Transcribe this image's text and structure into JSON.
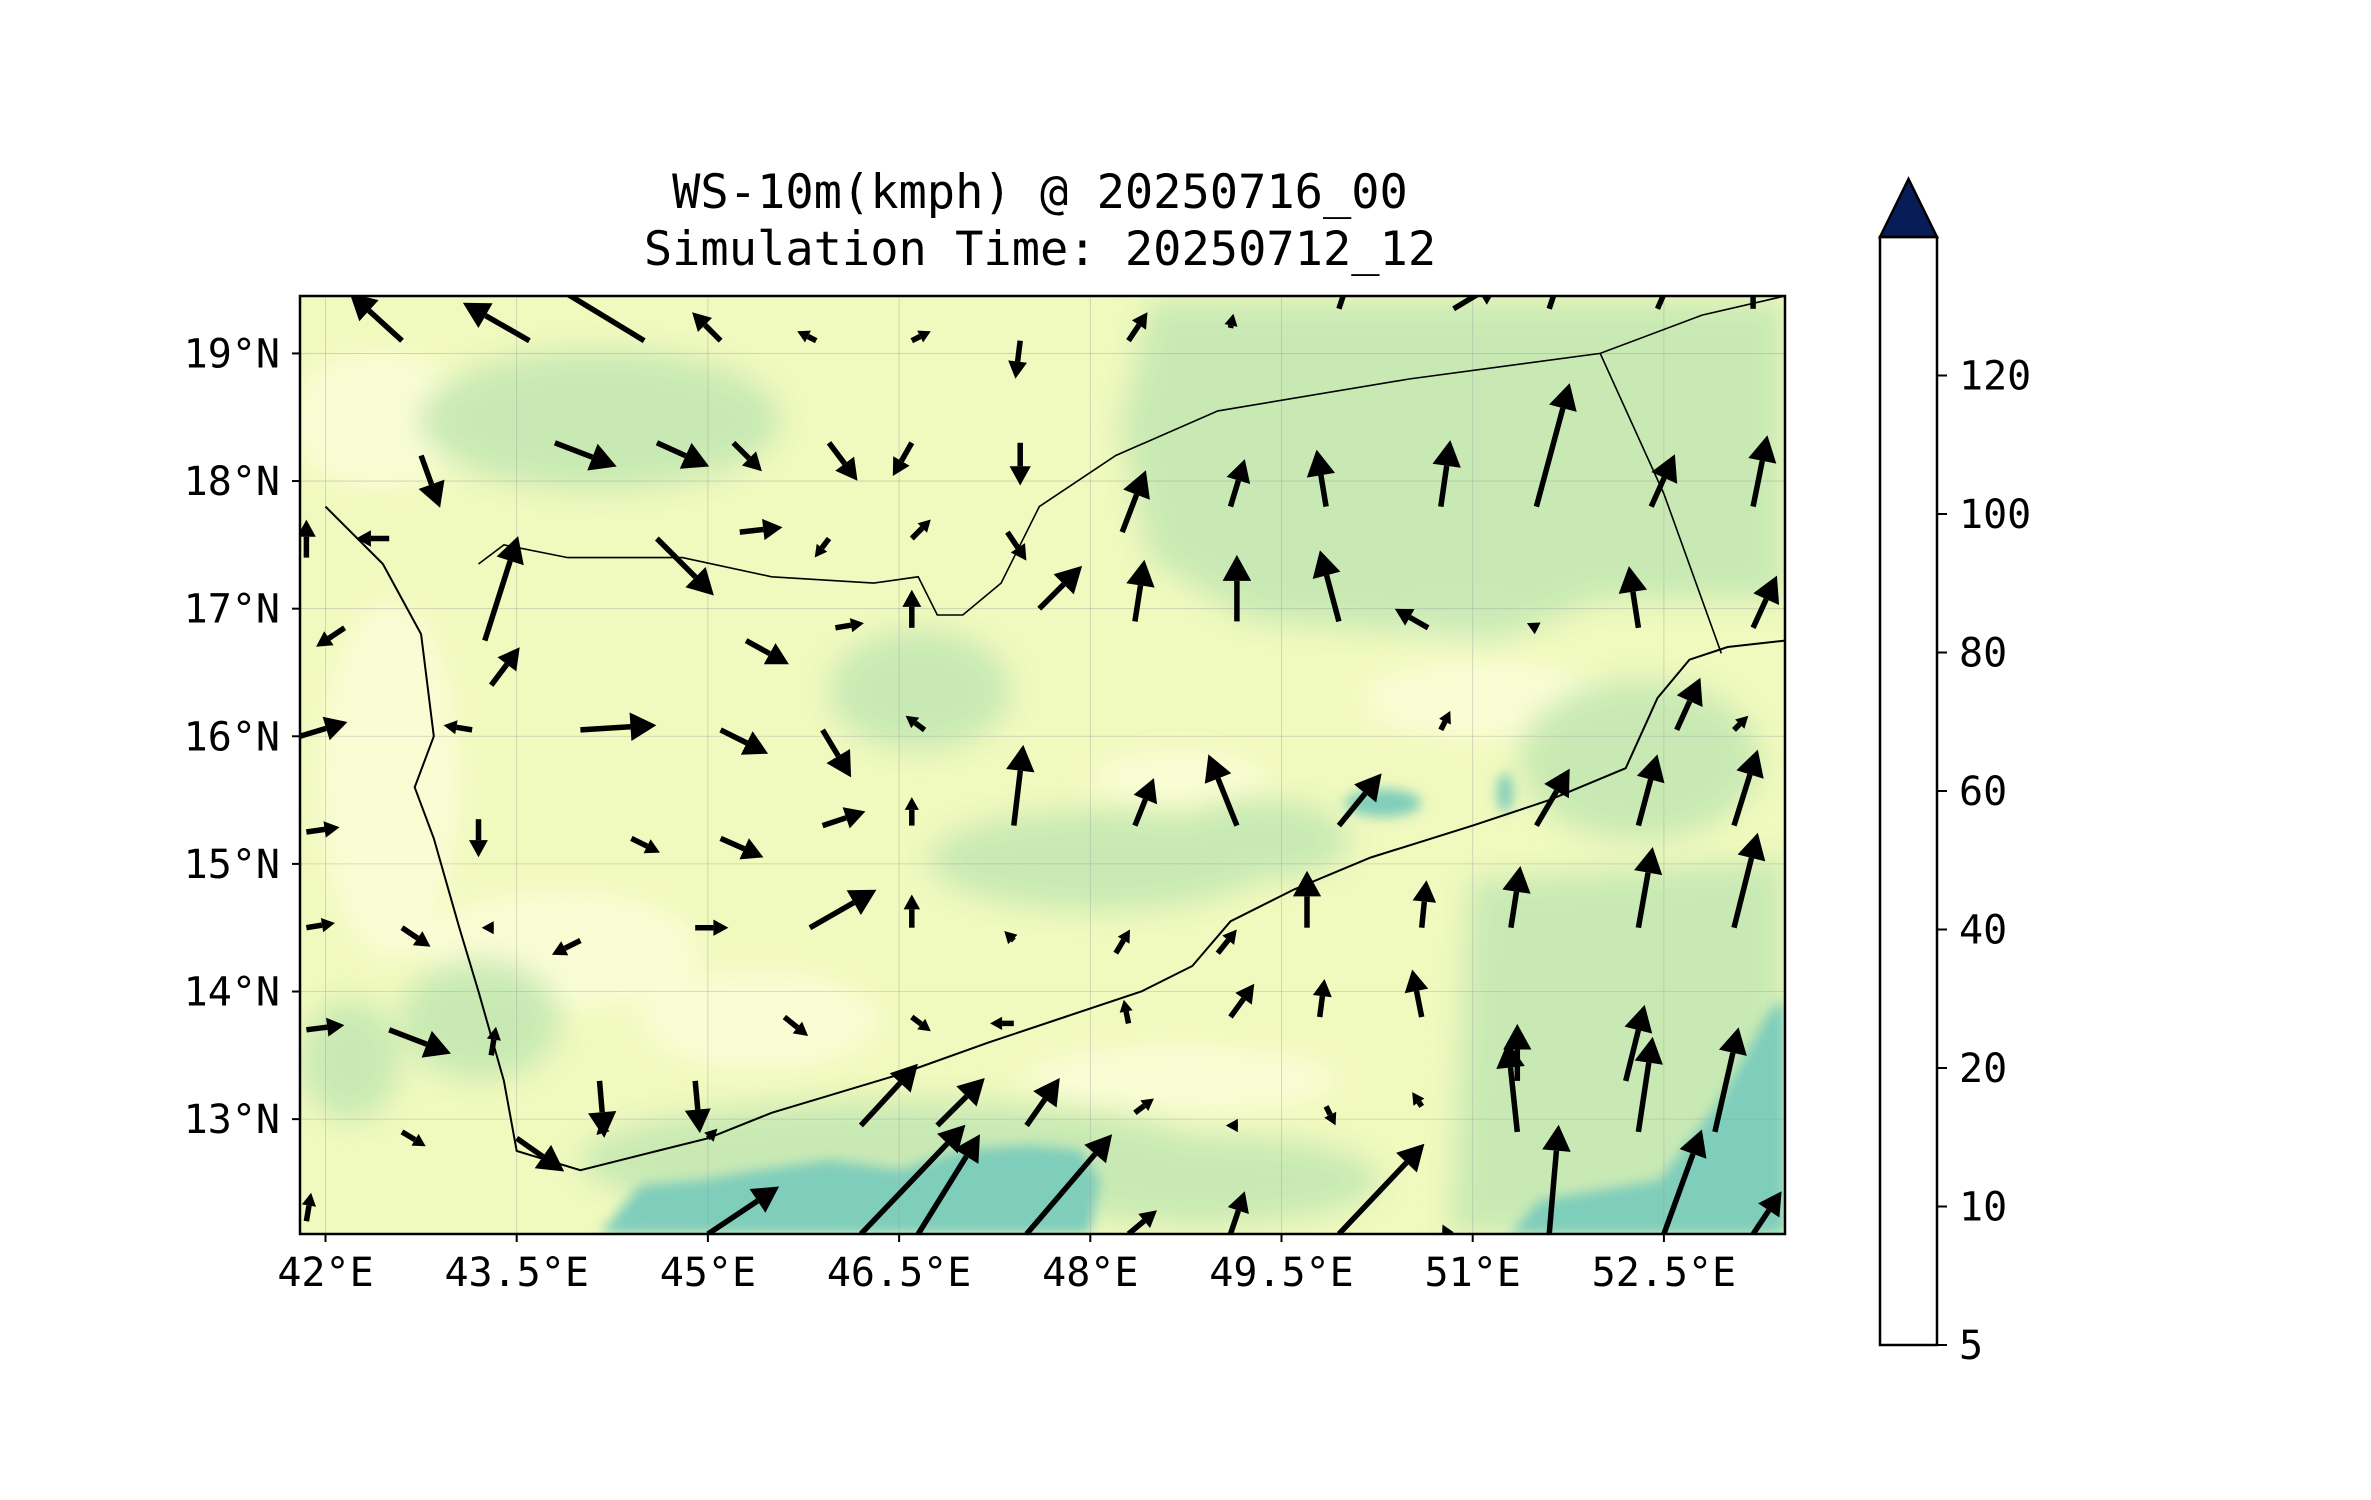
{
  "title": {
    "line1": "WS-10m(kmph) @ 20250716_00",
    "line2": "Simulation Time: 20250712_12"
  },
  "map": {
    "lon_range": [
      41.8,
      53.45
    ],
    "lat_range": [
      12.1,
      19.45
    ],
    "lon_ticks": [
      {
        "value": 42.0,
        "label": "42°E"
      },
      {
        "value": 43.5,
        "label": "43.5°E"
      },
      {
        "value": 45.0,
        "label": "45°E"
      },
      {
        "value": 46.5,
        "label": "46.5°E"
      },
      {
        "value": 48.0,
        "label": "48°E"
      },
      {
        "value": 49.5,
        "label": "49.5°E"
      },
      {
        "value": 51.0,
        "label": "51°E"
      },
      {
        "value": 52.5,
        "label": "52.5°E"
      }
    ],
    "lat_ticks": [
      {
        "value": 19,
        "label": "19°N"
      },
      {
        "value": 18,
        "label": "18°N"
      },
      {
        "value": 17,
        "label": "17°N"
      },
      {
        "value": 16,
        "label": "16°N"
      },
      {
        "value": 15,
        "label": "15°N"
      },
      {
        "value": 14,
        "label": "14°N"
      },
      {
        "value": 13,
        "label": "13°N"
      }
    ],
    "gridlines": true,
    "background_color": "#f0f9be",
    "coastline": [
      [
        42.0,
        17.8
      ],
      [
        42.45,
        17.35
      ],
      [
        42.75,
        16.8
      ],
      [
        42.85,
        16.0
      ],
      [
        42.7,
        15.6
      ],
      [
        42.85,
        15.2
      ],
      [
        43.05,
        14.5
      ],
      [
        43.2,
        14.0
      ],
      [
        43.4,
        13.3
      ],
      [
        43.5,
        12.75
      ],
      [
        44.0,
        12.6
      ],
      [
        44.6,
        12.75
      ],
      [
        45.0,
        12.85
      ],
      [
        45.5,
        13.05
      ],
      [
        46.5,
        13.35
      ],
      [
        47.2,
        13.6
      ],
      [
        47.8,
        13.8
      ],
      [
        48.4,
        14.0
      ],
      [
        48.8,
        14.2
      ],
      [
        49.1,
        14.55
      ],
      [
        49.6,
        14.8
      ],
      [
        50.2,
        15.05
      ],
      [
        51.0,
        15.3
      ],
      [
        51.6,
        15.5
      ],
      [
        52.2,
        15.75
      ],
      [
        52.45,
        16.3
      ],
      [
        52.7,
        16.6
      ],
      [
        53.0,
        16.7
      ],
      [
        53.45,
        16.75
      ]
    ],
    "borders": [
      [
        [
          43.2,
          17.35
        ],
        [
          43.4,
          17.5
        ],
        [
          43.9,
          17.4
        ],
        [
          44.8,
          17.4
        ],
        [
          45.5,
          17.25
        ],
        [
          46.3,
          17.2
        ],
        [
          46.65,
          17.25
        ],
        [
          46.8,
          16.95
        ],
        [
          47.0,
          16.95
        ],
        [
          47.3,
          17.2
        ],
        [
          47.6,
          17.8
        ],
        [
          48.2,
          18.2
        ],
        [
          49.0,
          18.55
        ],
        [
          50.5,
          18.8
        ],
        [
          52.0,
          19.0
        ],
        [
          52.8,
          19.3
        ],
        [
          53.45,
          19.45
        ]
      ],
      [
        [
          52.0,
          19.0
        ],
        [
          52.5,
          17.9
        ],
        [
          52.95,
          16.65
        ]
      ]
    ],
    "wind_field_shading": [
      {
        "level": "10-20",
        "region": "broad background"
      },
      {
        "level": "20-40",
        "region": "central and eastern plateau, Gulf of Aden"
      },
      {
        "level": "40-60",
        "region": "Gulf of Aden south of 13°N, east of 52°E"
      }
    ]
  },
  "colorbar": {
    "levels": [
      5,
      10,
      20,
      40,
      60,
      80,
      100,
      120
    ],
    "tick_labels": [
      "5",
      "10",
      "20",
      "40",
      "60",
      "80",
      "100",
      "120"
    ],
    "colors": [
      "#ffffd9",
      "#edf8b1",
      "#c7e9b4",
      "#7fcdbb",
      "#41b6c4",
      "#1d91c0",
      "#225ea8",
      "#253494"
    ],
    "extend_color": "#081d58",
    "extend": "max"
  },
  "wind_vectors": [
    {
      "lon": 42.6,
      "lat": 19.1,
      "u": -0.55,
      "v": 0.5
    },
    {
      "lon": 43.6,
      "lat": 19.1,
      "u": -0.7,
      "v": 0.4
    },
    {
      "lon": 44.5,
      "lat": 19.1,
      "u": -1.4,
      "v": 0.85
    },
    {
      "lon": 45.1,
      "lat": 19.1,
      "u": -0.3,
      "v": 0.3
    },
    {
      "lon": 45.85,
      "lat": 19.1,
      "u": -0.2,
      "v": 0.1
    },
    {
      "lon": 46.6,
      "lat": 19.1,
      "u": 0.2,
      "v": 0.1
    },
    {
      "lon": 47.45,
      "lat": 19.1,
      "u": -0.05,
      "v": -0.4
    },
    {
      "lon": 48.3,
      "lat": 19.1,
      "u": 0.2,
      "v": 0.3
    },
    {
      "lon": 49.1,
      "lat": 19.2,
      "u": 0.03,
      "v": 0.15
    },
    {
      "lon": 49.95,
      "lat": 19.35,
      "u": 0.1,
      "v": 0.3
    },
    {
      "lon": 50.85,
      "lat": 19.35,
      "u": 0.5,
      "v": 0.3
    },
    {
      "lon": 51.6,
      "lat": 19.35,
      "u": 0.1,
      "v": 0.3
    },
    {
      "lon": 52.45,
      "lat": 19.35,
      "u": 0.15,
      "v": 0.35
    },
    {
      "lon": 53.2,
      "lat": 19.35,
      "u": 0.0,
      "v": 0.25
    },
    {
      "lon": 42.75,
      "lat": 18.2,
      "u": 0.2,
      "v": -0.55
    },
    {
      "lon": 43.8,
      "lat": 18.3,
      "u": 0.65,
      "v": -0.25
    },
    {
      "lon": 44.6,
      "lat": 18.3,
      "u": 0.55,
      "v": -0.25
    },
    {
      "lon": 45.2,
      "lat": 18.3,
      "u": 0.3,
      "v": -0.3
    },
    {
      "lon": 45.95,
      "lat": 18.3,
      "u": 0.3,
      "v": -0.4
    },
    {
      "lon": 46.6,
      "lat": 18.3,
      "u": -0.2,
      "v": -0.35
    },
    {
      "lon": 47.45,
      "lat": 18.3,
      "u": 0.0,
      "v": -0.45
    },
    {
      "lon": 48.25,
      "lat": 17.6,
      "u": 0.25,
      "v": 0.65
    },
    {
      "lon": 49.1,
      "lat": 17.8,
      "u": 0.15,
      "v": 0.5
    },
    {
      "lon": 49.85,
      "lat": 17.8,
      "u": -0.1,
      "v": 0.6
    },
    {
      "lon": 50.75,
      "lat": 17.8,
      "u": 0.1,
      "v": 0.7
    },
    {
      "lon": 51.5,
      "lat": 17.8,
      "u": 0.35,
      "v": 1.3
    },
    {
      "lon": 52.4,
      "lat": 17.8,
      "u": 0.25,
      "v": 0.55
    },
    {
      "lon": 53.2,
      "lat": 17.8,
      "u": 0.15,
      "v": 0.75
    },
    {
      "lon": 43.25,
      "lat": 16.75,
      "u": 0.35,
      "v": 1.1
    },
    {
      "lon": 42.5,
      "lat": 17.55,
      "u": -0.35,
      "v": 0.0
    },
    {
      "lon": 44.6,
      "lat": 17.55,
      "u": 0.6,
      "v": -0.6
    },
    {
      "lon": 45.25,
      "lat": 17.6,
      "u": 0.45,
      "v": 0.05
    },
    {
      "lon": 45.95,
      "lat": 17.55,
      "u": -0.15,
      "v": -0.2
    },
    {
      "lon": 46.6,
      "lat": 17.55,
      "u": 0.2,
      "v": 0.2
    },
    {
      "lon": 47.35,
      "lat": 17.6,
      "u": 0.2,
      "v": -0.3
    },
    {
      "lon": 41.85,
      "lat": 17.4,
      "u": 0.0,
      "v": 0.4
    },
    {
      "lon": 43.3,
      "lat": 16.4,
      "u": 0.3,
      "v": 0.4
    },
    {
      "lon": 45.3,
      "lat": 16.75,
      "u": 0.45,
      "v": -0.25
    },
    {
      "lon": 46.0,
      "lat": 16.85,
      "u": 0.3,
      "v": 0.05
    },
    {
      "lon": 46.6,
      "lat": 16.85,
      "u": 0.0,
      "v": 0.4
    },
    {
      "lon": 47.6,
      "lat": 17.0,
      "u": 0.45,
      "v": 0.45
    },
    {
      "lon": 48.35,
      "lat": 16.9,
      "u": 0.1,
      "v": 0.65
    },
    {
      "lon": 49.15,
      "lat": 16.9,
      "u": 0.0,
      "v": 0.7
    },
    {
      "lon": 49.95,
      "lat": 16.9,
      "u": -0.2,
      "v": 0.75
    },
    {
      "lon": 50.65,
      "lat": 16.85,
      "u": -0.35,
      "v": 0.2
    },
    {
      "lon": 51.5,
      "lat": 16.85,
      "u": -0.1,
      "v": 0.05
    },
    {
      "lon": 52.3,
      "lat": 16.85,
      "u": -0.1,
      "v": 0.65
    },
    {
      "lon": 53.2,
      "lat": 16.85,
      "u": 0.25,
      "v": 0.55
    },
    {
      "lon": 42.15,
      "lat": 16.85,
      "u": -0.3,
      "v": -0.2
    },
    {
      "lon": 41.8,
      "lat": 16.0,
      "u": 0.5,
      "v": 0.15
    },
    {
      "lon": 43.15,
      "lat": 16.05,
      "u": -0.3,
      "v": 0.05
    },
    {
      "lon": 44.0,
      "lat": 16.05,
      "u": 0.8,
      "v": 0.05
    },
    {
      "lon": 45.1,
      "lat": 16.05,
      "u": 0.5,
      "v": -0.25
    },
    {
      "lon": 45.9,
      "lat": 16.05,
      "u": 0.3,
      "v": -0.5
    },
    {
      "lon": 46.7,
      "lat": 16.05,
      "u": -0.2,
      "v": 0.15
    },
    {
      "lon": 47.4,
      "lat": 15.3,
      "u": 0.1,
      "v": 0.85
    },
    {
      "lon": 48.35,
      "lat": 15.3,
      "u": 0.2,
      "v": 0.5
    },
    {
      "lon": 49.15,
      "lat": 15.3,
      "u": -0.3,
      "v": 0.75
    },
    {
      "lon": 49.95,
      "lat": 15.3,
      "u": 0.45,
      "v": 0.55
    },
    {
      "lon": 50.75,
      "lat": 16.05,
      "u": 0.1,
      "v": 0.2
    },
    {
      "lon": 51.5,
      "lat": 15.3,
      "u": 0.35,
      "v": 0.6
    },
    {
      "lon": 52.3,
      "lat": 15.3,
      "u": 0.2,
      "v": 0.75
    },
    {
      "lon": 53.05,
      "lat": 15.3,
      "u": 0.25,
      "v": 0.8
    },
    {
      "lon": 52.6,
      "lat": 16.05,
      "u": 0.25,
      "v": 0.55
    },
    {
      "lon": 53.05,
      "lat": 16.05,
      "u": 0.15,
      "v": 0.15
    },
    {
      "lon": 41.85,
      "lat": 15.25,
      "u": 0.35,
      "v": 0.05
    },
    {
      "lon": 43.2,
      "lat": 15.35,
      "u": 0.0,
      "v": -0.4
    },
    {
      "lon": 44.4,
      "lat": 15.2,
      "u": 0.3,
      "v": -0.15
    },
    {
      "lon": 45.1,
      "lat": 15.2,
      "u": 0.45,
      "v": -0.2
    },
    {
      "lon": 45.9,
      "lat": 15.3,
      "u": 0.45,
      "v": 0.15
    },
    {
      "lon": 46.6,
      "lat": 15.3,
      "u": 0.0,
      "v": 0.3
    },
    {
      "lon": 49.7,
      "lat": 14.5,
      "u": 0.0,
      "v": 0.6
    },
    {
      "lon": 50.6,
      "lat": 14.5,
      "u": 0.05,
      "v": 0.5
    },
    {
      "lon": 51.3,
      "lat": 14.5,
      "u": 0.1,
      "v": 0.65
    },
    {
      "lon": 52.3,
      "lat": 14.5,
      "u": 0.15,
      "v": 0.85
    },
    {
      "lon": 53.05,
      "lat": 14.5,
      "u": 0.25,
      "v": 1.0
    },
    {
      "lon": 41.85,
      "lat": 14.5,
      "u": 0.3,
      "v": 0.05
    },
    {
      "lon": 42.6,
      "lat": 14.5,
      "u": 0.3,
      "v": -0.2
    },
    {
      "lon": 43.3,
      "lat": 14.5,
      "u": -0.1,
      "v": 0.0
    },
    {
      "lon": 44.0,
      "lat": 14.4,
      "u": -0.3,
      "v": -0.15
    },
    {
      "lon": 44.9,
      "lat": 14.5,
      "u": 0.35,
      "v": 0.0
    },
    {
      "lon": 45.8,
      "lat": 14.5,
      "u": 0.7,
      "v": 0.4
    },
    {
      "lon": 46.6,
      "lat": 14.5,
      "u": 0.0,
      "v": 0.35
    },
    {
      "lon": 47.4,
      "lat": 14.4,
      "u": -0.1,
      "v": 0.1
    },
    {
      "lon": 48.2,
      "lat": 14.3,
      "u": 0.15,
      "v": 0.25
    },
    {
      "lon": 49.0,
      "lat": 14.3,
      "u": 0.2,
      "v": 0.25
    },
    {
      "lon": 41.85,
      "lat": 13.7,
      "u": 0.4,
      "v": 0.05
    },
    {
      "lon": 42.5,
      "lat": 13.7,
      "u": 0.65,
      "v": -0.25
    },
    {
      "lon": 43.3,
      "lat": 13.5,
      "u": 0.05,
      "v": 0.3
    },
    {
      "lon": 44.15,
      "lat": 13.3,
      "u": 0.05,
      "v": -0.6
    },
    {
      "lon": 44.9,
      "lat": 13.3,
      "u": 0.05,
      "v": -0.55
    },
    {
      "lon": 45.6,
      "lat": 13.8,
      "u": 0.25,
      "v": -0.2
    },
    {
      "lon": 46.6,
      "lat": 13.8,
      "u": 0.2,
      "v": -0.15
    },
    {
      "lon": 47.4,
      "lat": 13.75,
      "u": -0.25,
      "v": 0.0
    },
    {
      "lon": 48.3,
      "lat": 13.75,
      "u": -0.05,
      "v": 0.25
    },
    {
      "lon": 49.1,
      "lat": 13.8,
      "u": 0.25,
      "v": 0.35
    },
    {
      "lon": 49.8,
      "lat": 13.8,
      "u": 0.05,
      "v": 0.4
    },
    {
      "lon": 50.6,
      "lat": 13.8,
      "u": -0.1,
      "v": 0.5
    },
    {
      "lon": 51.35,
      "lat": 12.9,
      "u": -0.1,
      "v": 0.95
    },
    {
      "lon": 52.3,
      "lat": 12.9,
      "u": 0.15,
      "v": 1.0
    },
    {
      "lon": 52.9,
      "lat": 12.9,
      "u": 0.25,
      "v": 1.1
    },
    {
      "lon": 42.6,
      "lat": 12.9,
      "u": 0.25,
      "v": -0.15
    },
    {
      "lon": 43.5,
      "lat": 12.85,
      "u": 0.5,
      "v": -0.35
    },
    {
      "lon": 44.2,
      "lat": 12.95,
      "u": -0.1,
      "v": -0.1
    },
    {
      "lon": 45.0,
      "lat": 12.85,
      "u": 0.1,
      "v": 0.1
    },
    {
      "lon": 46.2,
      "lat": 12.95,
      "u": 0.6,
      "v": 0.65
    },
    {
      "lon": 46.8,
      "lat": 12.95,
      "u": 0.5,
      "v": 0.5
    },
    {
      "lon": 47.5,
      "lat": 12.95,
      "u": 0.35,
      "v": 0.5
    },
    {
      "lon": 48.35,
      "lat": 13.05,
      "u": 0.2,
      "v": 0.15
    },
    {
      "lon": 49.1,
      "lat": 12.95,
      "u": -0.05,
      "v": 0.0
    },
    {
      "lon": 49.85,
      "lat": 13.1,
      "u": 0.1,
      "v": -0.2
    },
    {
      "lon": 50.6,
      "lat": 13.1,
      "u": -0.1,
      "v": 0.15
    },
    {
      "lon": 51.35,
      "lat": 13.3,
      "u": 0.0,
      "v": 0.6
    },
    {
      "lon": 52.2,
      "lat": 13.3,
      "u": 0.2,
      "v": 0.8
    },
    {
      "lon": 41.85,
      "lat": 12.2,
      "u": 0.05,
      "v": 0.3
    },
    {
      "lon": 45.0,
      "lat": 12.1,
      "u": 0.75,
      "v": 0.5
    },
    {
      "lon": 46.2,
      "lat": 12.1,
      "u": 1.1,
      "v": 1.15
    },
    {
      "lon": 46.65,
      "lat": 12.1,
      "u": 0.65,
      "v": 1.05
    },
    {
      "lon": 47.5,
      "lat": 12.1,
      "u": 0.9,
      "v": 1.05
    },
    {
      "lon": 48.3,
      "lat": 12.1,
      "u": 0.3,
      "v": 0.25
    },
    {
      "lon": 49.1,
      "lat": 12.1,
      "u": 0.15,
      "v": 0.45
    },
    {
      "lon": 49.95,
      "lat": 12.1,
      "u": 0.9,
      "v": 0.95
    },
    {
      "lon": 50.8,
      "lat": 12.1,
      "u": -0.05,
      "v": 0.1
    },
    {
      "lon": 51.6,
      "lat": 12.1,
      "u": 0.1,
      "v": 1.15
    },
    {
      "lon": 52.5,
      "lat": 12.1,
      "u": 0.4,
      "v": 1.1
    },
    {
      "lon": 53.2,
      "lat": 12.1,
      "u": 0.3,
      "v": 0.45
    }
  ]
}
